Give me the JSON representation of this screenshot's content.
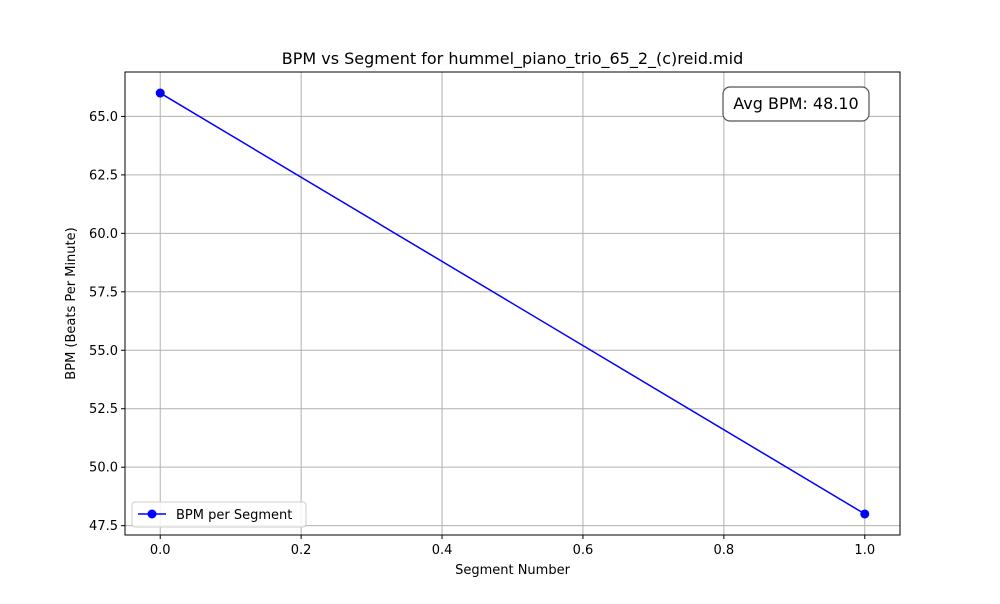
{
  "chart_data": {
    "type": "line",
    "title": "BPM vs Segment for hummel_piano_trio_65_2_(c)reid.mid",
    "xlabel": "Segment Number",
    "ylabel": "BPM (Beats Per Minute)",
    "xlim": [
      -0.05,
      1.05
    ],
    "ylim": [
      47.1,
      66.9
    ],
    "grid": true,
    "x_ticks": [
      0.0,
      0.2,
      0.4,
      0.6,
      0.8,
      1.0
    ],
    "x_tick_labels": [
      "0.0",
      "0.2",
      "0.4",
      "0.6",
      "0.8",
      "1.0"
    ],
    "y_ticks": [
      47.5,
      50.0,
      52.5,
      55.0,
      57.5,
      60.0,
      62.5,
      65.0
    ],
    "y_tick_labels": [
      "47.5",
      "50.0",
      "52.5",
      "55.0",
      "57.5",
      "60.0",
      "62.5",
      "65.0"
    ],
    "series": [
      {
        "name": "BPM per Segment",
        "x": [
          0,
          1
        ],
        "values": [
          66.0,
          48.0
        ],
        "color": "#0000ff",
        "marker": "circle"
      }
    ],
    "legend": {
      "position": "lower-left",
      "entries": [
        "BPM per Segment"
      ]
    },
    "annotation": {
      "text": "Avg BPM: 48.10",
      "position": "top-right"
    },
    "colors": {
      "grid": "#b0b0b0",
      "axes": "#000000",
      "box_edge": "#555555"
    }
  }
}
